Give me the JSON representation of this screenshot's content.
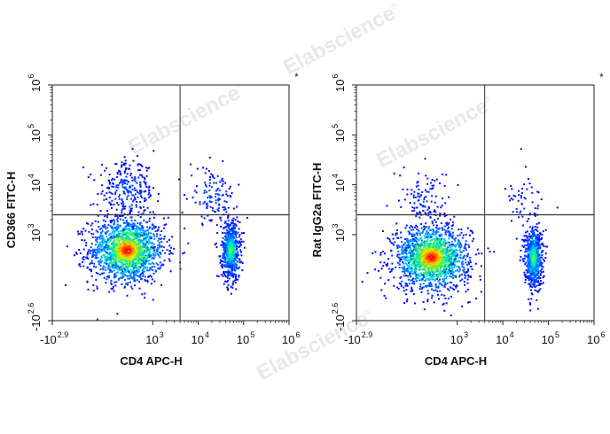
{
  "watermark": "Elabscience",
  "watermark_mark": "®",
  "chart_data": [
    {
      "type": "scatter",
      "subtype": "flow-cytometry-density-dot-plot",
      "title": "",
      "xlabel": "CD4 APC-H",
      "ylabel": "CD366 FITC-H",
      "xscale": "biexponential",
      "yscale": "biexponential",
      "x_ticks": [
        {
          "base": "-10",
          "exp": "2.9"
        },
        {
          "base": "10",
          "exp": "3"
        },
        {
          "base": "10",
          "exp": "4"
        },
        {
          "base": "10",
          "exp": "5"
        },
        {
          "base": "10",
          "exp": "6"
        }
      ],
      "y_ticks": [
        {
          "base": "-10",
          "exp": "2.6"
        },
        {
          "base": "10",
          "exp": "3"
        },
        {
          "base": "10",
          "exp": "4"
        },
        {
          "base": "10",
          "exp": "5"
        },
        {
          "base": "10",
          "exp": "6"
        }
      ],
      "quadrant_gate": {
        "x": 4000,
        "y": 2500
      },
      "corner_marker": "*",
      "populations": [
        {
          "x_center": 400,
          "y_center": 600,
          "density": "high",
          "description": "CD4-negative cells, CD366-negative"
        },
        {
          "x_center": 50000,
          "y_center": 600,
          "density": "high",
          "description": "CD4-positive cells, CD366-negative"
        },
        {
          "x_center": 400,
          "y_center": 8000,
          "density": "low",
          "description": "CD4-negative cells, CD366-positive"
        },
        {
          "x_center": 20000,
          "y_center": 6000,
          "density": "low",
          "description": "CD4-positive cells, CD366-positive"
        }
      ],
      "color_scale": [
        "#0000ff",
        "#00c8ff",
        "#00ff66",
        "#ffff00",
        "#ff6600",
        "#ff0000"
      ]
    },
    {
      "type": "scatter",
      "subtype": "flow-cytometry-density-dot-plot",
      "title": "",
      "xlabel": "CD4 APC-H",
      "ylabel": "Rat IgG2a FITC-H",
      "xscale": "biexponential",
      "yscale": "biexponential",
      "x_ticks": [
        {
          "base": "-10",
          "exp": "2.9"
        },
        {
          "base": "10",
          "exp": "3"
        },
        {
          "base": "10",
          "exp": "4"
        },
        {
          "base": "10",
          "exp": "5"
        },
        {
          "base": "10",
          "exp": "6"
        }
      ],
      "y_ticks": [
        {
          "base": "-10",
          "exp": "2.6"
        },
        {
          "base": "10",
          "exp": "3"
        },
        {
          "base": "10",
          "exp": "4"
        },
        {
          "base": "10",
          "exp": "5"
        },
        {
          "base": "10",
          "exp": "6"
        }
      ],
      "quadrant_gate": {
        "x": 4000,
        "y": 2500
      },
      "corner_marker": "*",
      "populations": [
        {
          "x_center": 400,
          "y_center": 500,
          "density": "high",
          "description": "CD4-negative cells, isotype-negative"
        },
        {
          "x_center": 45000,
          "y_center": 500,
          "density": "high",
          "description": "CD4-positive cells, isotype-negative"
        },
        {
          "x_center": 300,
          "y_center": 5000,
          "density": "very-low",
          "description": "CD4-negative cells, isotype-positive (background)"
        },
        {
          "x_center": 30000,
          "y_center": 4000,
          "density": "very-low",
          "description": "CD4-positive cells, isotype-positive (background)"
        }
      ],
      "color_scale": [
        "#0000ff",
        "#00c8ff",
        "#00ff66",
        "#ffff00",
        "#ff6600",
        "#ff0000"
      ]
    }
  ]
}
